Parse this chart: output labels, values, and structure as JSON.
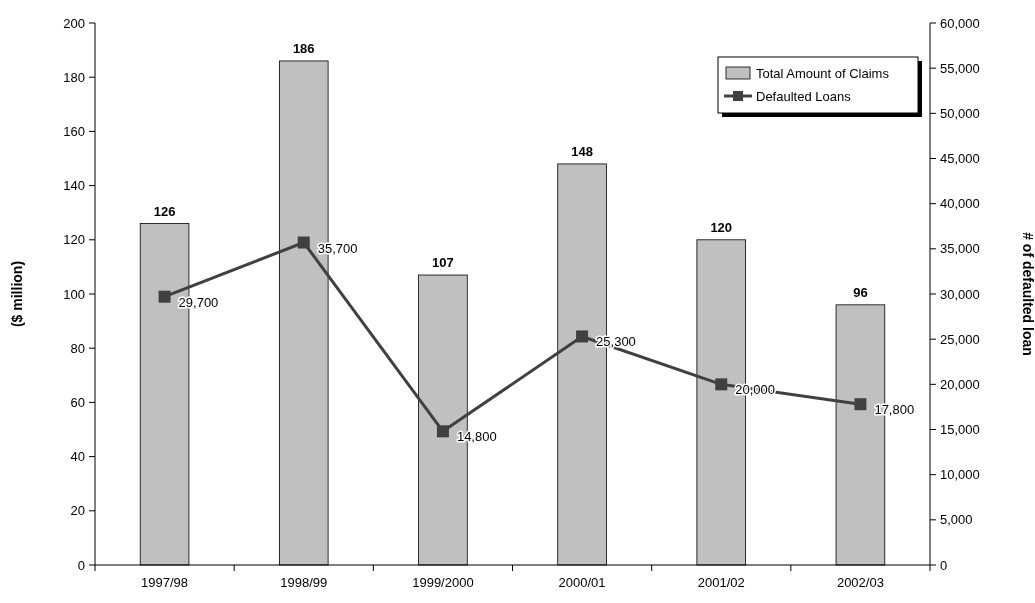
{
  "chart_data": {
    "type": "bar",
    "ylabel": "($ million)",
    "y2label": "# of defaulted loan",
    "categories": [
      "1997/98",
      "1998/99",
      "1999/2000",
      "2000/01",
      "2001/02",
      "2002/03"
    ],
    "series": [
      {
        "name": "Total Amount of Claims",
        "color": "#c0c0c0",
        "values": [
          126,
          186,
          107,
          148,
          120,
          96
        ]
      },
      {
        "name": "Defaulted Loans",
        "type": "line",
        "axis": "y2",
        "color": "#404040",
        "values": [
          29700,
          35700,
          14800,
          25300,
          20000,
          17800
        ],
        "value_labels": [
          "29,700",
          "35,700",
          "14,800",
          "25,300",
          "20,000",
          "17,800"
        ]
      }
    ],
    "ylim": [
      0,
      200
    ],
    "yticks": [
      0,
      20,
      40,
      60,
      80,
      100,
      120,
      140,
      160,
      180,
      200
    ],
    "y2lim": [
      0,
      60000
    ],
    "y2ticks": [
      0,
      {
        "value": 5000,
        "label": "5,000"
      },
      {
        "value": 10000,
        "label": "10,000"
      },
      {
        "value": 15000,
        "label": "15,000"
      },
      {
        "value": 20000,
        "label": "20,000"
      },
      {
        "value": 25000,
        "label": "25,000"
      },
      {
        "value": 30000,
        "label": "30,000"
      },
      {
        "value": 35000,
        "label": "35,000"
      },
      {
        "value": 40000,
        "label": "40,000"
      },
      {
        "value": 45000,
        "label": "45,000"
      },
      {
        "value": 50000,
        "label": "50,000"
      },
      {
        "value": 55000,
        "label": "55,000"
      },
      {
        "value": 60000,
        "label": "60,000"
      }
    ],
    "data_labels": true,
    "legend": "top right",
    "marker": "square",
    "grid": false
  }
}
